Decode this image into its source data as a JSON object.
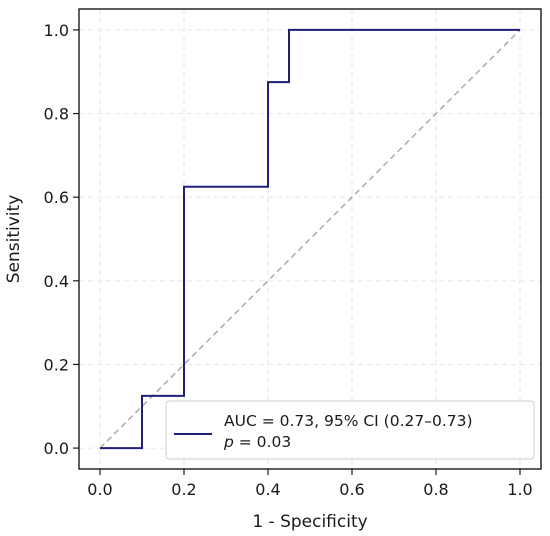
{
  "chart_data": {
    "type": "line",
    "xlabel": "1 - Specificity",
    "ylabel": "Sensitivity",
    "xlim": [
      -0.05,
      1.05
    ],
    "ylim": [
      -0.05,
      1.05
    ],
    "xticks": [
      "0.0",
      "0.2",
      "0.4",
      "0.6",
      "0.8",
      "1.0"
    ],
    "yticks": [
      "0.0",
      "0.2",
      "0.4",
      "0.6",
      "0.8",
      "1.0"
    ],
    "grid": true,
    "legend_position": "lower-right",
    "series": [
      {
        "name": "AUC = 0.73, 95% CI (0.27–0.73)",
        "color": "#1f1f7a",
        "style": "step",
        "x": [
          0.0,
          0.1,
          0.1,
          0.2,
          0.2,
          0.4,
          0.4,
          0.45,
          0.45,
          1.0
        ],
        "y": [
          0.0,
          0.0,
          0.125,
          0.125,
          0.625,
          0.625,
          0.875,
          0.875,
          1.0,
          1.0
        ]
      },
      {
        "color": "#aaaaaa",
        "style": "dashed",
        "x": [
          0.0,
          1.0
        ],
        "y": [
          0.0,
          1.0
        ]
      }
    ],
    "legend": {
      "entry_label": "AUC = 0.73, 95% CI (0.27–0.73)",
      "p_symbol": "p",
      "p_value": " = 0.03"
    }
  }
}
